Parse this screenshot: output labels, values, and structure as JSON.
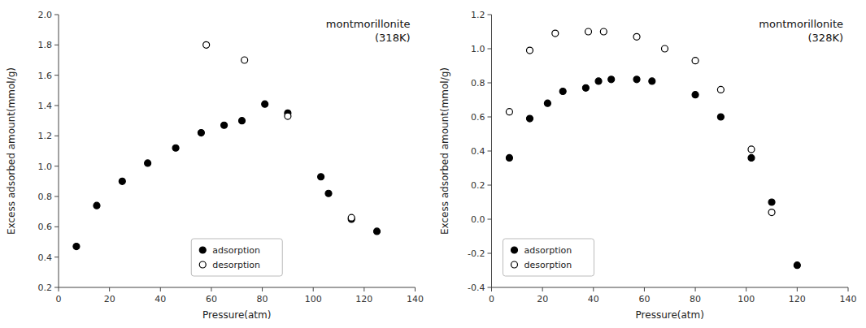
{
  "chart_data": [
    {
      "type": "scatter",
      "title": "montmorillonite",
      "subtitle": "(318K)",
      "x_label": "Pressure(atm)",
      "y_label": "Excess adsorbed amount(mmol/g)",
      "xlim": [
        0,
        140
      ],
      "ylim": [
        0.2,
        2.0
      ],
      "xticks": [
        0,
        20,
        40,
        60,
        80,
        100,
        120,
        140
      ],
      "yticks": [
        0.2,
        0.4,
        0.6,
        0.8,
        {
          "value": 1.0,
          "label": "1.0"
        },
        1.2,
        1.4,
        1.6,
        1.8,
        {
          "value": 2.0,
          "label": "2.0"
        }
      ],
      "grid": false,
      "legend": "lower center",
      "series": [
        {
          "name": "adsorption",
          "color": "black",
          "marker": "circle",
          "x": [
            7,
            15,
            25,
            35,
            46,
            56,
            65,
            72,
            81,
            90,
            103,
            106,
            115,
            125
          ],
          "values": [
            0.47,
            0.74,
            0.9,
            1.02,
            1.12,
            1.22,
            1.27,
            1.3,
            1.41,
            1.35,
            0.93,
            0.82,
            0.65,
            0.57
          ]
        },
        {
          "name": "desorption",
          "color": "black",
          "marker": "open-circle",
          "x": [
            58,
            73,
            90,
            115
          ],
          "values": [
            1.8,
            1.7,
            1.33,
            0.66
          ]
        }
      ]
    },
    {
      "type": "scatter",
      "title": "montmorillonite",
      "subtitle": "(328K)",
      "x_label": "Pressure(atm)",
      "y_label": "Excess adsorbed amount(mmol/g)",
      "xlim": [
        0,
        140
      ],
      "ylim": [
        -0.4,
        1.2
      ],
      "xticks": [
        0,
        20,
        40,
        60,
        80,
        100,
        120,
        140
      ],
      "yticks": [
        -0.4,
        -0.2,
        {
          "value": 0.0,
          "label": "0.0"
        },
        0.2,
        0.4,
        0.6,
        0.8,
        {
          "value": 1.0,
          "label": "1.0"
        },
        1.2
      ],
      "grid": false,
      "legend": "lower left",
      "series": [
        {
          "name": "adsorption",
          "color": "black",
          "marker": "circle",
          "x": [
            7,
            15,
            22,
            28,
            37,
            42,
            47,
            57,
            63,
            80,
            90,
            102,
            110,
            120
          ],
          "values": [
            0.36,
            0.59,
            0.68,
            0.75,
            0.77,
            0.81,
            0.82,
            0.82,
            0.81,
            0.73,
            0.6,
            0.36,
            0.1,
            -0.27
          ]
        },
        {
          "name": "desorption",
          "color": "black",
          "marker": "open-circle",
          "x": [
            7,
            15,
            25,
            38,
            44,
            57,
            68,
            80,
            90,
            102,
            110
          ],
          "values": [
            0.63,
            0.99,
            1.09,
            1.1,
            1.1,
            1.07,
            1.0,
            0.93,
            0.76,
            0.41,
            0.04
          ]
        }
      ]
    }
  ]
}
